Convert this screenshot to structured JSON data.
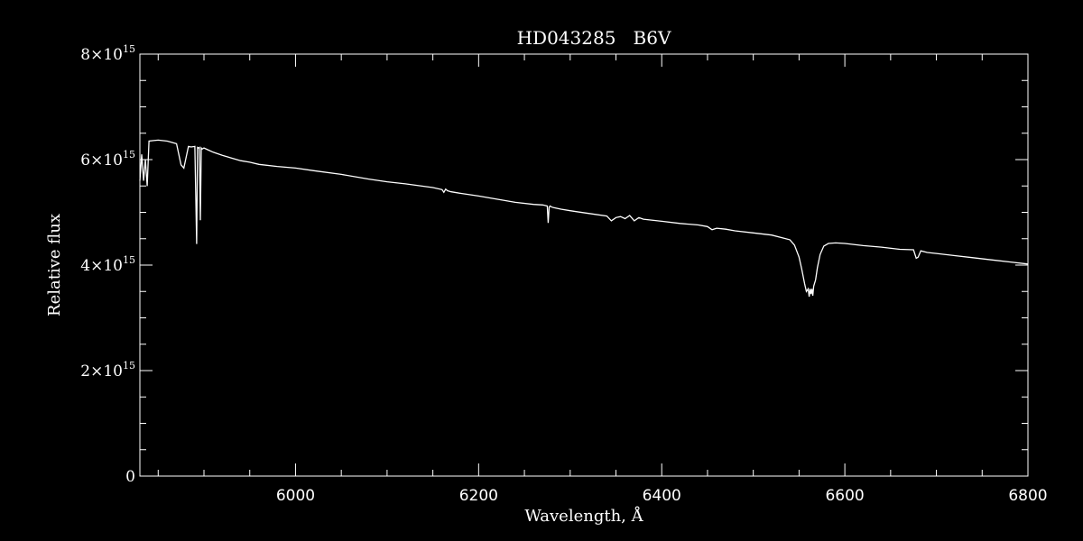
{
  "chart_data": {
    "type": "line",
    "title_star": "HD043285",
    "title_type": "B6V",
    "xlabel": "Wavelength, Å",
    "ylabel": "Relative flux",
    "xlim": [
      5830,
      6800
    ],
    "ylim": [
      0,
      8000000000000000.0
    ],
    "x_ticks": [
      6000,
      6200,
      6400,
      6600,
      6800
    ],
    "y_ticks": [
      {
        "value": 0,
        "base": "0",
        "exp": ""
      },
      {
        "value": 2000000000000000.0,
        "base": "2×10",
        "exp": "15"
      },
      {
        "value": 4000000000000000.0,
        "base": "4×10",
        "exp": "15"
      },
      {
        "value": 6000000000000000.0,
        "base": "6×10",
        "exp": "15"
      },
      {
        "value": 8000000000000000.0,
        "base": "8×10",
        "exp": "15"
      }
    ],
    "colors": {
      "background": "#000000",
      "foreground": "#ffffff"
    },
    "series": [
      {
        "x": [
          5830,
          5832,
          5834,
          5836,
          5838,
          5840,
          5845,
          5850,
          5860,
          5870,
          5875,
          5878,
          5880,
          5883,
          5886,
          5890,
          5892,
          5893,
          5894,
          5895,
          5896,
          5897,
          5898,
          5899,
          5900,
          5905,
          5910,
          5920,
          5940,
          5950,
          5960,
          5980,
          6000,
          6020,
          6050,
          6080,
          6100,
          6120,
          6150,
          6160,
          6162,
          6164,
          6166,
          6170,
          6180,
          6200,
          6220,
          6240,
          6260,
          6270,
          6275,
          6276,
          6277,
          6278,
          6280,
          6282,
          6290,
          6300,
          6320,
          6340,
          6345,
          6350,
          6355,
          6360,
          6365,
          6370,
          6375,
          6380,
          6400,
          6420,
          6440,
          6450,
          6455,
          6460,
          6470,
          6480,
          6500,
          6520,
          6540,
          6545,
          6550,
          6553,
          6556,
          6558,
          6560,
          6561,
          6562,
          6563,
          6564,
          6565,
          6566,
          6568,
          6570,
          6573,
          6577,
          6582,
          6590,
          6600,
          6620,
          6640,
          6660,
          6675,
          6678,
          6680,
          6683,
          6690,
          6700,
          6720,
          6740,
          6760,
          6780,
          6800
        ],
        "y": [
          5600000000000000.0,
          6100000000000000.0,
          5600000000000000.0,
          6000000000000000.0,
          5500000000000000.0,
          6350000000000000.0,
          6360000000000000.0,
          6370000000000000.0,
          6350000000000000.0,
          6300000000000000.0,
          5900000000000000.0,
          5840000000000000.0,
          6000000000000000.0,
          6250000000000000.0,
          6240000000000000.0,
          6250000000000000.0,
          4400000000000000.0,
          6230000000000000.0,
          6220000000000000.0,
          6230000000000000.0,
          4850000000000000.0,
          6220000000000000.0,
          6200000000000000.0,
          6210000000000000.0,
          6220000000000000.0,
          6180000000000000.0,
          6140000000000000.0,
          6080000000000000.0,
          5980000000000000.0,
          5950000000000000.0,
          5910000000000000.0,
          5870000000000000.0,
          5840000000000000.0,
          5790000000000000.0,
          5720000000000000.0,
          5630000000000000.0,
          5580000000000000.0,
          5540000000000000.0,
          5470000000000000.0,
          5430000000000000.0,
          5380000000000000.0,
          5440000000000000.0,
          5410000000000000.0,
          5390000000000000.0,
          5360000000000000.0,
          5310000000000000.0,
          5250000000000000.0,
          5190000000000000.0,
          5150000000000000.0,
          5140000000000000.0,
          5120000000000000.0,
          4800000000000000.0,
          5100000000000000.0,
          5120000000000000.0,
          5100000000000000.0,
          5090000000000000.0,
          5060000000000000.0,
          5030000000000000.0,
          4980000000000000.0,
          4930000000000000.0,
          4840000000000000.0,
          4900000000000000.0,
          4920000000000000.0,
          4880000000000000.0,
          4940000000000000.0,
          4840000000000000.0,
          4900000000000000.0,
          4870000000000000.0,
          4830000000000000.0,
          4790000000000000.0,
          4760000000000000.0,
          4730000000000000.0,
          4670000000000000.0,
          4700000000000000.0,
          4680000000000000.0,
          4650000000000000.0,
          4610000000000000.0,
          4570000000000000.0,
          4480000000000000.0,
          4380000000000000.0,
          4150000000000000.0,
          3920000000000000.0,
          3650000000000000.0,
          3500000000000000.0,
          3550000000000000.0,
          3400000000000000.0,
          3550000000000000.0,
          3450000000000000.0,
          3550000000000000.0,
          3420000000000000.0,
          3600000000000000.0,
          3720000000000000.0,
          3950000000000000.0,
          4200000000000000.0,
          4360000000000000.0,
          4410000000000000.0,
          4420000000000000.0,
          4410000000000000.0,
          4370000000000000.0,
          4340000000000000.0,
          4300000000000000.0,
          4290000000000000.0,
          4130000000000000.0,
          4150000000000000.0,
          4270000000000000.0,
          4240000000000000.0,
          4220000000000000.0,
          4180000000000000.0,
          4140000000000000.0,
          4100000000000000.0,
          4060000000000000.0,
          4020000000000000.0
        ]
      }
    ]
  }
}
